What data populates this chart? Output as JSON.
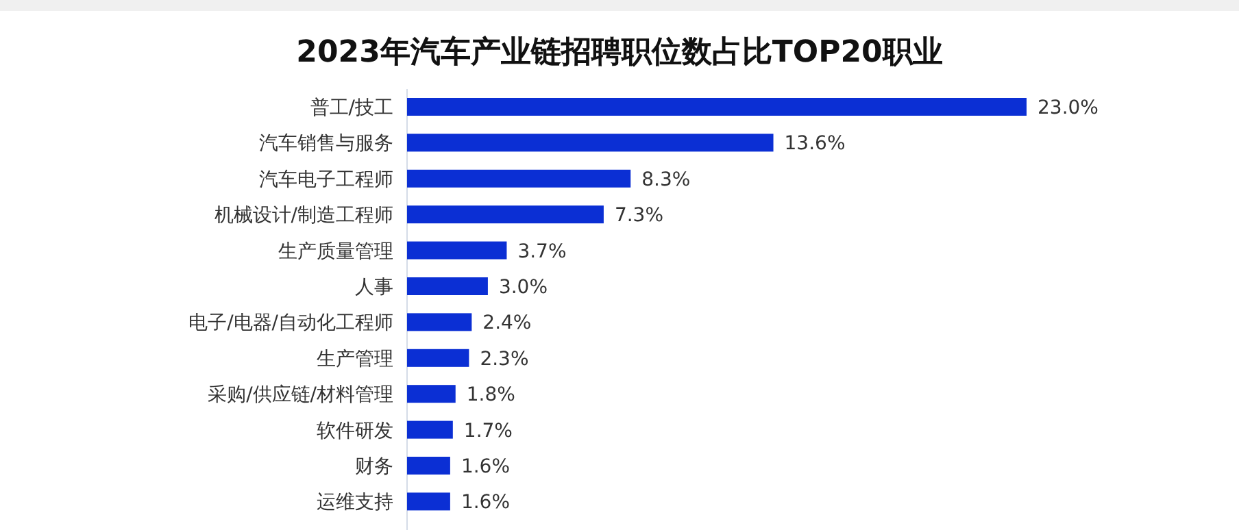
{
  "chart_data": {
    "type": "bar",
    "orientation": "horizontal",
    "title": "2023年汽车产业链招聘职位数占比TOP20职业",
    "categories": [
      "普工/技工",
      "汽车销售与服务",
      "汽车电子工程师",
      "机械设计/制造工程师",
      "生产质量管理",
      "人事",
      "电子/电器/自动化工程师",
      "生产管理",
      "采购/供应链/材料管理",
      "软件研发",
      "财务",
      "运维支持"
    ],
    "values": [
      23.0,
      13.6,
      8.3,
      7.3,
      3.7,
      3.0,
      2.4,
      2.3,
      1.8,
      1.7,
      1.6,
      1.6
    ],
    "value_labels": [
      "23.0%",
      "13.6%",
      "8.3%",
      "7.3%",
      "3.7%",
      "3.0%",
      "2.4%",
      "2.3%",
      "1.8%",
      "1.7%",
      "1.6%",
      "1.6%"
    ],
    "color": "#0b2fd4"
  }
}
